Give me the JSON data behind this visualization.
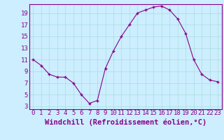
{
  "x": [
    0,
    1,
    2,
    3,
    4,
    5,
    6,
    7,
    8,
    9,
    10,
    11,
    12,
    13,
    14,
    15,
    16,
    17,
    18,
    19,
    20,
    21,
    22,
    23
  ],
  "y": [
    11.0,
    10.0,
    8.5,
    8.0,
    8.0,
    7.0,
    5.0,
    3.5,
    4.0,
    9.5,
    12.5,
    15.0,
    17.0,
    19.0,
    19.5,
    20.0,
    20.2,
    19.5,
    18.0,
    15.5,
    11.0,
    8.5,
    7.5,
    7.2
  ],
  "xlabel": "Windchill (Refroidissement éolien,°C)",
  "yticks": [
    3,
    5,
    7,
    9,
    11,
    13,
    15,
    17,
    19
  ],
  "xticks": [
    0,
    1,
    2,
    3,
    4,
    5,
    6,
    7,
    8,
    9,
    10,
    11,
    12,
    13,
    14,
    15,
    16,
    17,
    18,
    19,
    20,
    21,
    22,
    23
  ],
  "ylim": [
    2.5,
    20.5
  ],
  "xlim": [
    -0.5,
    23.5
  ],
  "line_color": "#880088",
  "marker": "+",
  "bg_color": "#cceeff",
  "grid_color": "#aadddd",
  "text_color": "#880088",
  "spine_color": "#880088",
  "font_size": 6.5,
  "xlabel_fontsize": 7.5
}
